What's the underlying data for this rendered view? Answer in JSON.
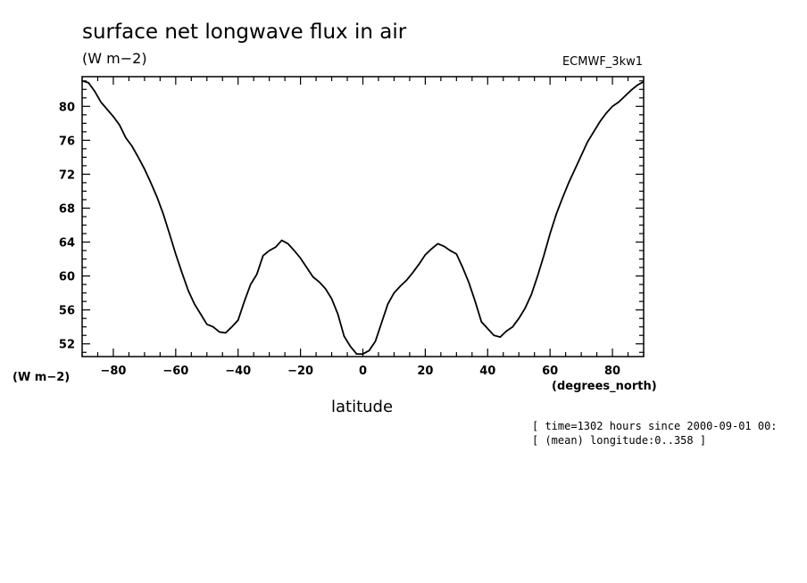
{
  "header": {
    "title": "surface net longwave flux in air",
    "units": "(W m−2)",
    "dataset": "ECMWF_3kw1"
  },
  "footer": {
    "note_time": "[ time=1302 hours since 2000-09-01 00:",
    "note_longitude": "[ (mean) longitude:0..358 ]"
  },
  "colors": {
    "line": "#000000",
    "background": "#ffffff"
  },
  "chart_data": {
    "type": "line",
    "title": "surface net longwave flux in air",
    "xlabel": "latitude",
    "xunit": "(degrees_north)",
    "ylabel": "(W m−2)",
    "xlim": [
      -90,
      90
    ],
    "ylim": [
      50.5,
      83.5
    ],
    "xticks": [
      -80,
      -60,
      -40,
      -20,
      0,
      20,
      40,
      60,
      80
    ],
    "yticks": [
      52,
      56,
      60,
      64,
      68,
      72,
      76,
      80
    ],
    "grid": false,
    "series": [
      {
        "x": [
          -90,
          -88,
          -86,
          -84,
          -80,
          -78,
          -76,
          -74,
          -72,
          -70,
          -68,
          -66,
          -64,
          -62,
          -60,
          -58,
          -56,
          -54,
          -52,
          -50,
          -48,
          -46,
          -44,
          -42,
          -40,
          -38,
          -36,
          -34,
          -32,
          -30,
          -28,
          -26,
          -24,
          -22,
          -20,
          -18,
          -16,
          -14,
          -12,
          -10,
          -8,
          -6,
          -4,
          -2,
          0,
          2,
          4,
          6,
          8,
          10,
          12,
          14,
          16,
          18,
          20,
          22,
          24,
          26,
          28,
          30,
          32,
          34,
          36,
          38,
          40,
          42,
          44,
          46,
          48,
          50,
          52,
          54,
          56,
          58,
          60,
          62,
          64,
          66,
          68,
          70,
          72,
          74,
          76,
          78,
          80,
          82,
          84,
          86,
          88,
          90
        ],
        "y": [
          83.0,
          82.8,
          81.8,
          80.5,
          78.8,
          77.8,
          76.3,
          75.3,
          74.0,
          72.6,
          71.0,
          69.3,
          67.3,
          65.0,
          62.6,
          60.4,
          58.3,
          56.7,
          55.5,
          54.3,
          54.0,
          53.4,
          53.3,
          54.0,
          54.8,
          57.0,
          59.0,
          60.2,
          62.4,
          63.0,
          63.4,
          64.2,
          63.8,
          63.0,
          62.1,
          61.0,
          59.9,
          59.3,
          58.5,
          57.3,
          55.5,
          52.9,
          51.7,
          50.8,
          50.8,
          51.2,
          52.3,
          54.5,
          56.7,
          58.0,
          58.8,
          59.5,
          60.4,
          61.4,
          62.5,
          63.2,
          63.8,
          63.5,
          63.0,
          62.6,
          61.0,
          59.2,
          57.0,
          54.6,
          53.8,
          53.0,
          52.8,
          53.5,
          54.0,
          55.0,
          56.2,
          57.8,
          60.0,
          62.4,
          65.0,
          67.3,
          69.2,
          71.0,
          72.6,
          74.2,
          75.8,
          77.0,
          78.2,
          79.2,
          80.0,
          80.5,
          81.2,
          81.9,
          82.5,
          82.9
        ]
      }
    ]
  }
}
